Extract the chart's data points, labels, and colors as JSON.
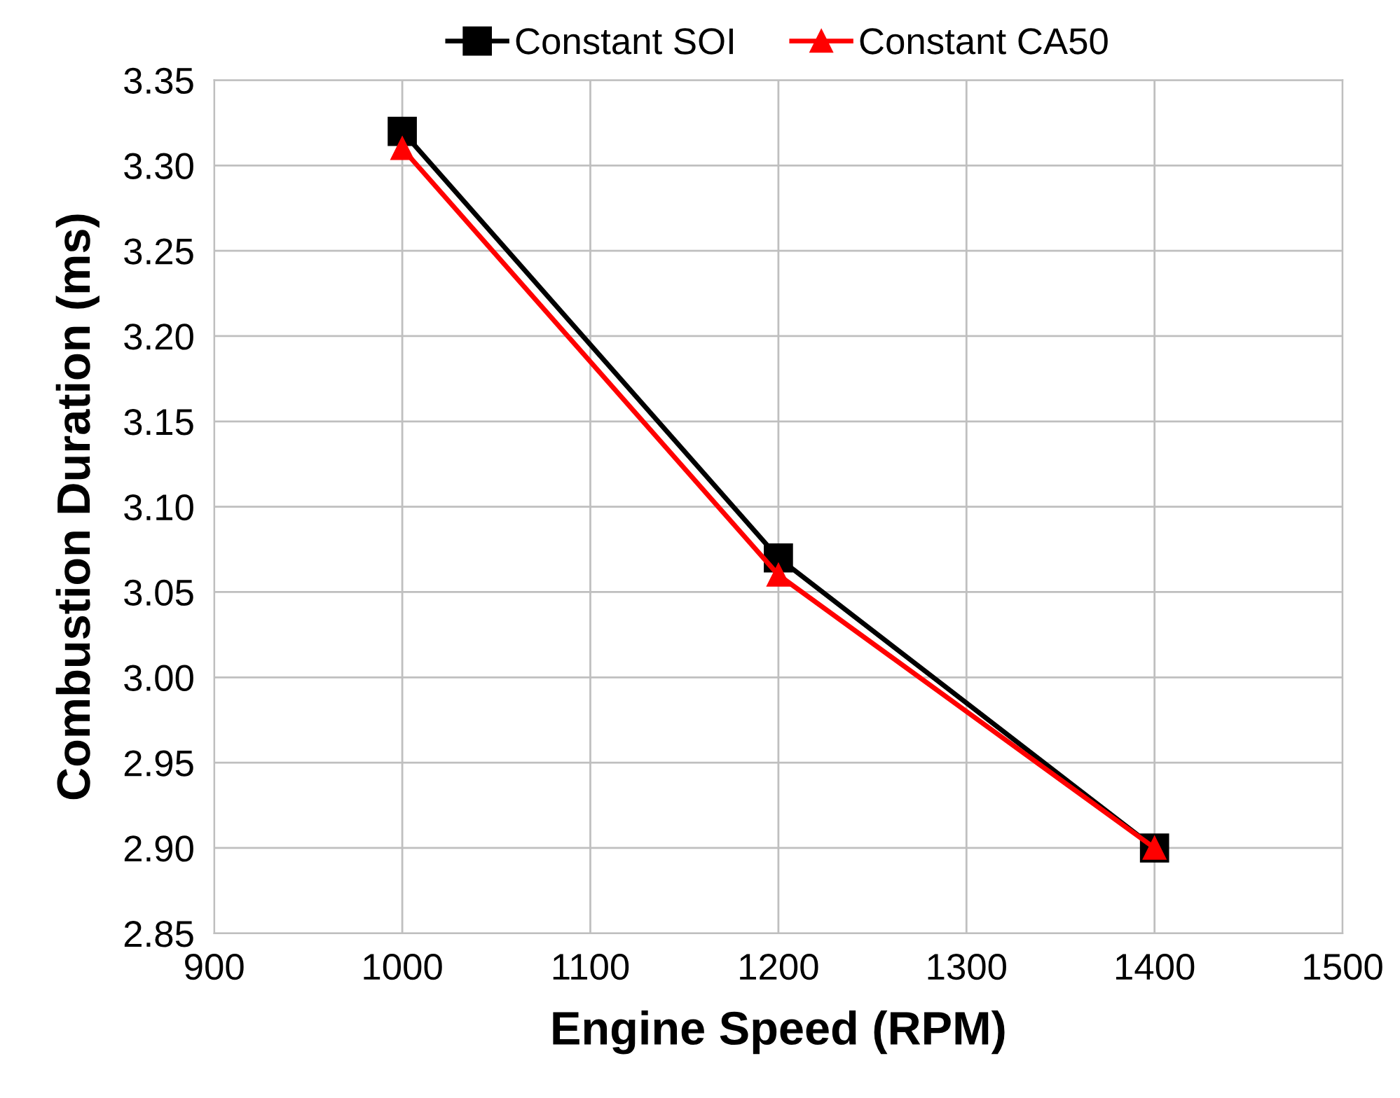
{
  "chart_data": {
    "type": "line",
    "xlabel": "Engine Speed (RPM)",
    "ylabel": "Combustion Duration (ms)",
    "x": [
      1000,
      1200,
      1400
    ],
    "series": [
      {
        "name": "Constant SOI",
        "color": "#000000",
        "marker": "square",
        "values": [
          3.32,
          3.07,
          2.9
        ]
      },
      {
        "name": "Constant CA50",
        "color": "#ff0000",
        "marker": "triangle",
        "values": [
          3.31,
          3.06,
          2.9
        ]
      }
    ],
    "xlim": [
      900,
      1500
    ],
    "xticks": [
      900,
      1000,
      1100,
      1200,
      1300,
      1400,
      1500
    ],
    "ylim": [
      2.85,
      3.35
    ],
    "yticks": [
      {
        "value": 2.85,
        "label": "2.85"
      },
      {
        "value": 2.9,
        "label": "2.90"
      },
      {
        "value": 2.95,
        "label": "2.95"
      },
      {
        "value": 3.0,
        "label": "3.00"
      },
      {
        "value": 3.05,
        "label": "3.05"
      },
      {
        "value": 3.1,
        "label": "3.10"
      },
      {
        "value": 3.15,
        "label": "3.15"
      },
      {
        "value": 3.2,
        "label": "3.20"
      },
      {
        "value": 3.25,
        "label": "3.25"
      },
      {
        "value": 3.3,
        "label": "3.30"
      },
      {
        "value": 3.35,
        "label": "3.35"
      }
    ],
    "grid": true,
    "legend": "top",
    "line_style": "solid"
  }
}
